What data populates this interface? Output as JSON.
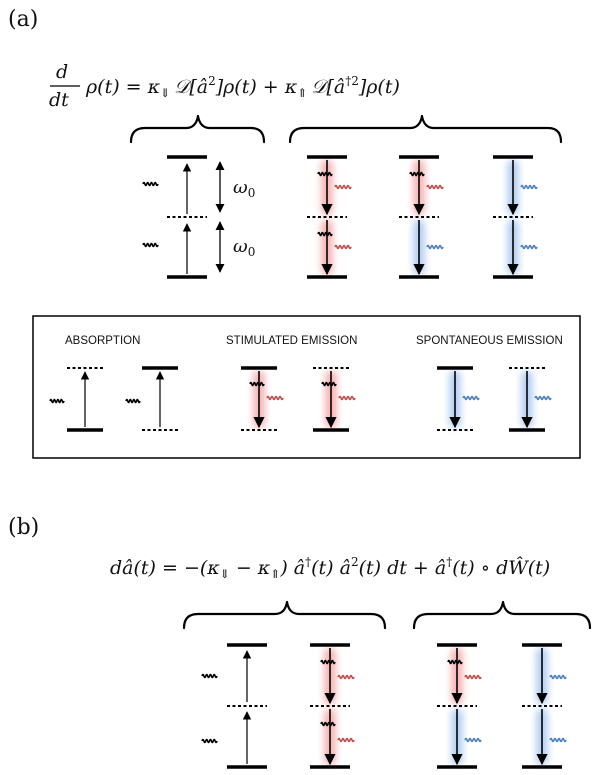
{
  "panel_a": {
    "label": "(a)",
    "equation": {
      "lhs_num": "d",
      "lhs_den": "dt",
      "rho_t": "ρ(t) = κ",
      "sub_down": "⇓",
      "d1": "𝒟[â",
      "sq1": "2",
      "mid": "]ρ(t) + κ",
      "sub_up": "⇑",
      "d2": "𝒟[â",
      "sq2": "†2",
      "end": "]ρ(t)"
    },
    "omega": "ω",
    "omega_sub": "0"
  },
  "legend": {
    "absorption": "ABSORPTION",
    "stimulated": "STIMULATED EMISSION",
    "spontaneous": "SPONTANEOUS EMISSION"
  },
  "panel_b": {
    "label": "(b)",
    "equation": {
      "p1": "dâ(t) = −(κ",
      "sub_down": "⇓",
      "p2": " − κ",
      "sub_up": "⇑",
      "p3": ") â",
      "dag1": "†",
      "p4": "(t) â",
      "sq": "2",
      "p5": "(t) dt + â",
      "dag2": "†",
      "p6": "(t) ∘ dŴ(t)"
    }
  },
  "colors": {
    "black": "#000000",
    "red": "#c0504d",
    "blue": "#4f81bd",
    "red_glow": "#f4a7a7",
    "blue_glow": "#a9c8f0"
  }
}
